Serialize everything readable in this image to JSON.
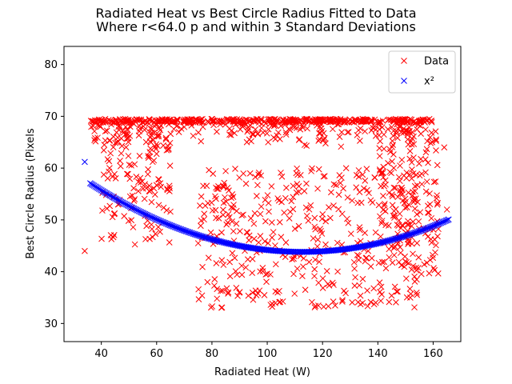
{
  "chart_data": {
    "type": "scatter",
    "title": [
      "Radiated Heat vs Best Circle Radius Fitted to Data",
      "Where r<64.0 p and within 3 Standard Deviations"
    ],
    "xlabel": "Radiated Heat (W)",
    "ylabel": "Best Circle Radius (Pixels",
    "xlim": [
      26.5,
      170
    ],
    "ylim": [
      26.5,
      83.5
    ],
    "xticks": [
      40,
      60,
      80,
      100,
      120,
      140,
      160
    ],
    "yticks": [
      30,
      40,
      50,
      60,
      70,
      80
    ],
    "grid": false,
    "legend_position": "upper right",
    "legend": [
      {
        "name": "Data",
        "marker": "x",
        "color": "#ff0000"
      },
      {
        "name": "x²",
        "marker": "x",
        "color": "#0000ff"
      }
    ],
    "fit": {
      "name": "x²",
      "coefficients": [
        0.002245,
        -0.5066,
        72.4
      ],
      "x_range": [
        34,
        166
      ],
      "outlier_point": [
        34,
        61.2
      ]
    },
    "data_cluster_ranges": {
      "top_band": {
        "x": [
          36,
          160
        ],
        "y": [
          64,
          69.5
        ]
      },
      "left_band": {
        "x": [
          40,
          65
        ],
        "y": [
          45,
          68
        ]
      },
      "bottom_cluster": {
        "x": [
          75,
          155
        ],
        "y": [
          33,
          60
        ]
      },
      "right_cluster": {
        "x": [
          140,
          162
        ],
        "y": [
          38,
          68
        ]
      }
    },
    "notable_points": [
      {
        "x": 34,
        "y": 44
      },
      {
        "x": 164,
        "y": 64
      },
      {
        "x": 165,
        "y": 52
      }
    ]
  }
}
